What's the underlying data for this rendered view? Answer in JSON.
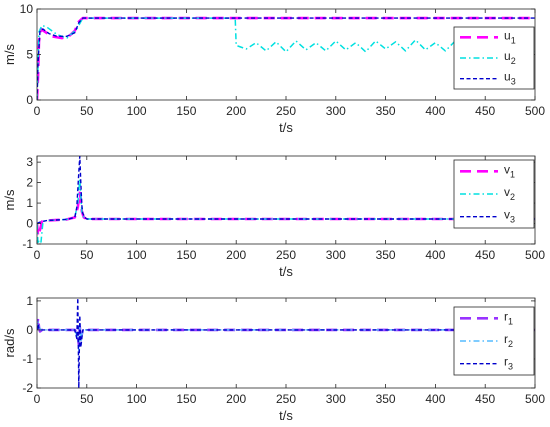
{
  "chart_data": [
    {
      "type": "line",
      "xlabel": "t/s",
      "ylabel": "m/s",
      "xlim": [
        0,
        500
      ],
      "ylim": [
        0,
        10
      ],
      "xticks": [
        0,
        50,
        100,
        150,
        200,
        250,
        300,
        350,
        400,
        450,
        500
      ],
      "yticks": [
        0,
        5,
        10
      ],
      "legend_position": "right",
      "series": [
        {
          "name": "u",
          "sub": "1",
          "color": "#ff00ff",
          "style": "dash-thick",
          "x": [
            0,
            1,
            2,
            4,
            8,
            15,
            25,
            32,
            38,
            42,
            46,
            60,
            100,
            150,
            200,
            250,
            300,
            350,
            400,
            450,
            500
          ],
          "y": [
            0,
            2.5,
            6.5,
            7.8,
            7.5,
            7.0,
            6.8,
            7.0,
            7.6,
            8.6,
            9.0,
            9.0,
            9.0,
            9.0,
            9.0,
            9.0,
            9.0,
            9.0,
            9.0,
            9.0,
            9.0
          ]
        },
        {
          "name": "u",
          "sub": "2",
          "color": "#00e0e0",
          "style": "dot-dash",
          "x": [
            0,
            2,
            5,
            10,
            20,
            30,
            40,
            46,
            100,
            150,
            199,
            200,
            210,
            220,
            230,
            240,
            250,
            260,
            270,
            280,
            290,
            300,
            310,
            320,
            330,
            340,
            350,
            360,
            370,
            380,
            390,
            400,
            410,
            420,
            430,
            440,
            450,
            460,
            470,
            480,
            490,
            500
          ],
          "y": [
            0,
            7.5,
            8.2,
            8.0,
            7.2,
            6.8,
            7.8,
            9.0,
            9.0,
            9.0,
            9.0,
            6.0,
            5.6,
            6.3,
            5.4,
            6.4,
            5.3,
            6.5,
            5.5,
            6.3,
            5.4,
            6.5,
            5.5,
            6.3,
            5.3,
            6.5,
            5.6,
            6.4,
            5.4,
            6.6,
            5.5,
            6.3,
            5.4,
            6.5,
            5.6,
            6.4,
            5.5,
            6.6,
            5.6,
            6.3,
            5.8,
            5.2
          ]
        },
        {
          "name": "u",
          "sub": "3",
          "color": "#0000cc",
          "style": "short-dash",
          "x": [
            0,
            1,
            3,
            6,
            12,
            20,
            30,
            38,
            42,
            46,
            100,
            200,
            300,
            400,
            500
          ],
          "y": [
            0,
            4.0,
            7.6,
            7.8,
            7.3,
            7.0,
            7.0,
            7.4,
            8.5,
            9.0,
            9.0,
            9.0,
            9.0,
            9.0,
            9.0
          ]
        }
      ]
    },
    {
      "type": "line",
      "xlabel": "t/s",
      "ylabel": "m/s",
      "xlim": [
        0,
        500
      ],
      "ylim": [
        -1,
        3.3
      ],
      "xticks": [
        0,
        50,
        100,
        150,
        200,
        250,
        300,
        350,
        400,
        450,
        500
      ],
      "yticks": [
        -1,
        0,
        1,
        2,
        3
      ],
      "legend_position": "right",
      "series": [
        {
          "name": "v",
          "sub": "1",
          "color": "#ff00ff",
          "style": "dash-thick",
          "x": [
            0,
            1,
            3,
            5,
            10,
            30,
            38,
            41,
            43,
            44,
            45,
            47,
            50,
            100,
            200,
            300,
            400,
            500
          ],
          "y": [
            0,
            -0.6,
            -0.3,
            0.1,
            0.15,
            0.2,
            0.3,
            0.8,
            1.5,
            1.2,
            0.6,
            0.3,
            0.22,
            0.22,
            0.22,
            0.22,
            0.22,
            0.22
          ]
        },
        {
          "name": "v",
          "sub": "2",
          "color": "#00e0e0",
          "style": "dot-dash",
          "x": [
            0,
            1,
            2,
            4,
            6,
            10,
            30,
            38,
            41,
            43,
            44,
            45,
            47,
            50,
            100,
            200,
            300,
            400,
            500
          ],
          "y": [
            0,
            -1.0,
            -0.8,
            -0.9,
            0.1,
            0.15,
            0.2,
            0.3,
            1.0,
            2.2,
            1.4,
            0.6,
            0.3,
            0.22,
            0.22,
            0.22,
            0.22,
            0.22,
            0.22
          ]
        },
        {
          "name": "v",
          "sub": "3",
          "color": "#0000cc",
          "style": "short-dash",
          "x": [
            0,
            2,
            5,
            10,
            30,
            38,
            40,
            42,
            43,
            44,
            45,
            46,
            48,
            50,
            100,
            200,
            300,
            400,
            500
          ],
          "y": [
            0,
            0.05,
            0.1,
            0.15,
            0.2,
            0.3,
            0.8,
            2.5,
            3.3,
            2.0,
            0.9,
            0.5,
            0.3,
            0.22,
            0.22,
            0.22,
            0.22,
            0.22,
            0.22
          ]
        }
      ]
    },
    {
      "type": "line",
      "xlabel": "t/s",
      "ylabel": "rad/s",
      "xlim": [
        0,
        500
      ],
      "ylim": [
        -2,
        1.1
      ],
      "xticks": [
        0,
        50,
        100,
        150,
        200,
        250,
        300,
        350,
        400,
        450,
        500
      ],
      "yticks": [
        -2,
        -1,
        0,
        1
      ],
      "legend_position": "right",
      "series": [
        {
          "name": "r",
          "sub": "1",
          "color": "#9933ff",
          "style": "dash-thick",
          "x": [
            0,
            1,
            2,
            3,
            5,
            10,
            38,
            41,
            42,
            43,
            44,
            46,
            50,
            100,
            200,
            300,
            400,
            500
          ],
          "y": [
            0,
            0.4,
            0.1,
            -0.05,
            0.0,
            0.0,
            0.0,
            -0.2,
            -0.5,
            0.1,
            -0.3,
            0.0,
            0.0,
            0.0,
            0.0,
            0.0,
            0.0,
            0.0
          ]
        },
        {
          "name": "r",
          "sub": "2",
          "color": "#55bbff",
          "style": "dot-dash",
          "x": [
            0,
            1,
            2,
            4,
            10,
            38,
            41,
            42,
            43,
            44,
            46,
            50,
            100,
            200,
            300,
            400,
            500
          ],
          "y": [
            0,
            0.3,
            0.1,
            0.0,
            0.0,
            0.0,
            -0.3,
            -0.7,
            0.2,
            -0.4,
            0.0,
            0.0,
            0.0,
            0.0,
            0.0,
            0.0,
            0.0
          ]
        },
        {
          "name": "r",
          "sub": "3",
          "color": "#0000cc",
          "style": "short-dash",
          "x": [
            0,
            1,
            2,
            4,
            10,
            38,
            40,
            41,
            42,
            43,
            44,
            46,
            50,
            100,
            200,
            300,
            400,
            500
          ],
          "y": [
            0,
            0.2,
            0.05,
            0.0,
            0.0,
            0.0,
            -0.3,
            1.1,
            -2.0,
            0.5,
            -0.6,
            0.0,
            0.0,
            0.0,
            0.0,
            0.0,
            0.0,
            0.0
          ]
        }
      ]
    }
  ]
}
